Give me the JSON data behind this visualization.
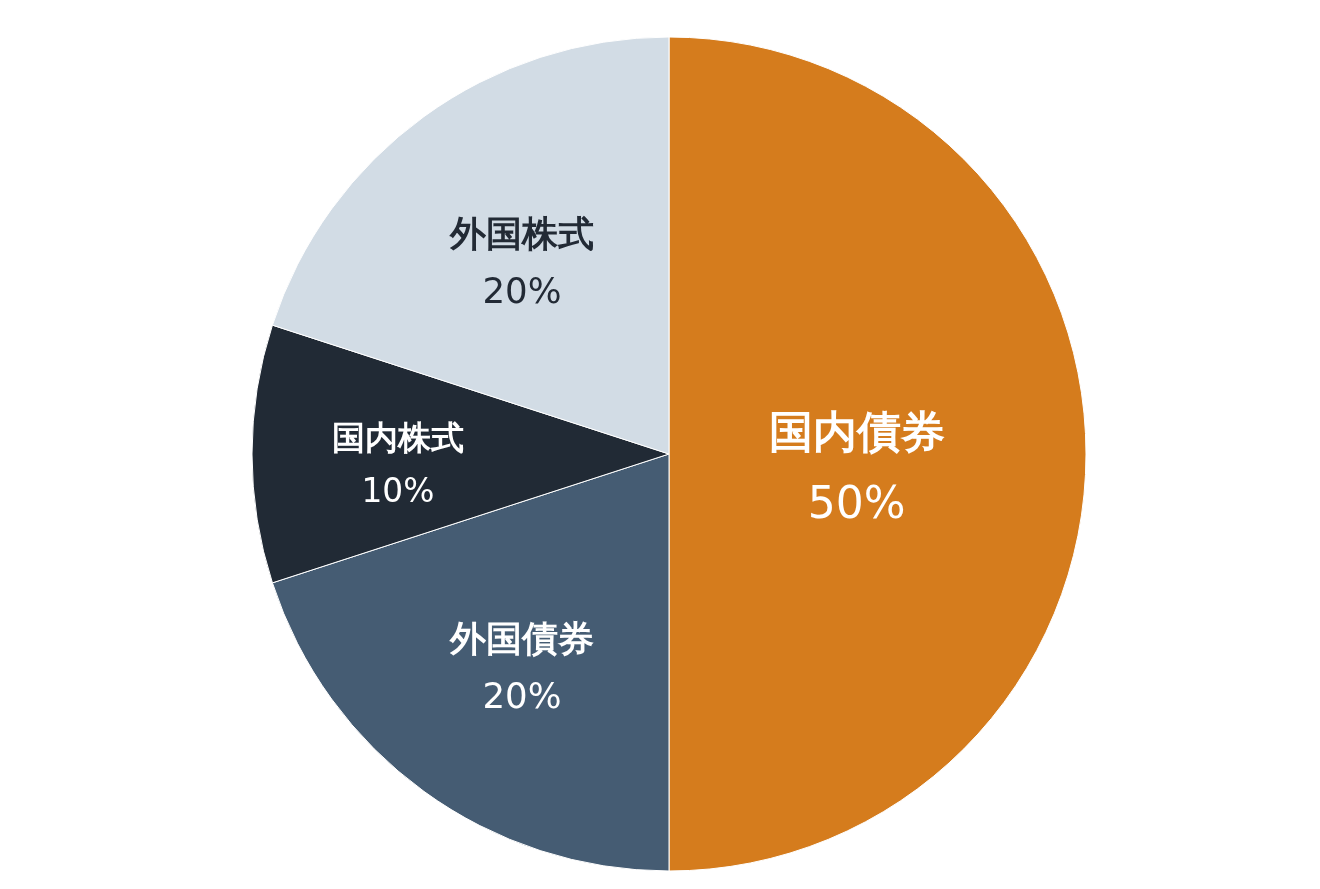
{
  "chart_data": {
    "type": "pie",
    "categories": [
      "国内債券",
      "外国債券",
      "国内株式",
      "外国株式"
    ],
    "values": [
      50,
      20,
      10,
      20
    ],
    "value_labels": [
      "50%",
      "20%",
      "10%",
      "20%"
    ],
    "colors": [
      "#d57c1d",
      "#455c73",
      "#212a35",
      "#d2dce5"
    ]
  }
}
